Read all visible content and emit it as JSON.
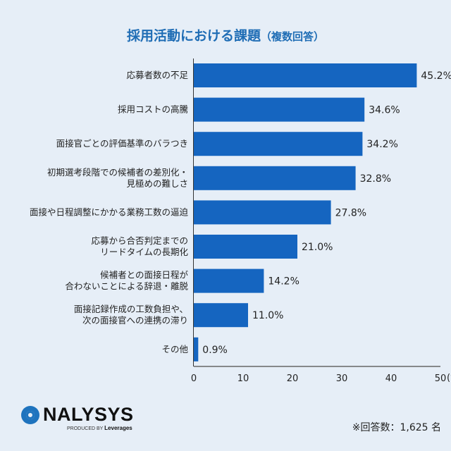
{
  "title": "採用活動における課題",
  "title_suffix": "（複数回答）",
  "chart_data": {
    "type": "bar",
    "orientation": "horizontal",
    "categories": [
      [
        "応募者数の不足"
      ],
      [
        "採用コストの高騰"
      ],
      [
        "面接官ごとの評価基準のバラつき"
      ],
      [
        "初期選考段階での候補者の差別化・",
        "見極めの難しさ"
      ],
      [
        "面接や日程調整にかかる業務工数の逼迫"
      ],
      [
        "応募から合否判定までの",
        "リードタイムの長期化"
      ],
      [
        "候補者との面接日程が",
        "合わないことによる辞退・離脱"
      ],
      [
        "面接記録作成の工数負担や、",
        "次の面接官への連携の滞り"
      ],
      [
        "その他"
      ]
    ],
    "values": [
      45.2,
      34.6,
      34.2,
      32.8,
      27.8,
      21.0,
      14.2,
      11.0,
      0.9
    ],
    "value_labels": [
      "45.2%",
      "34.6%",
      "34.2%",
      "32.8%",
      "27.8%",
      "21.0%",
      "14.2%",
      "11.0%",
      "0.9%"
    ],
    "xlim": [
      0,
      50
    ],
    "xticks": [
      "0",
      "10",
      "20",
      "30",
      "40",
      "50"
    ],
    "x_unit": "(%)",
    "bar_color": "#1565c0",
    "grid": false
  },
  "logo": {
    "name": "NALYSYS",
    "produced_by": "PRODUCED BY",
    "brand": "Leverages"
  },
  "note": "※回答数：1,625 名"
}
